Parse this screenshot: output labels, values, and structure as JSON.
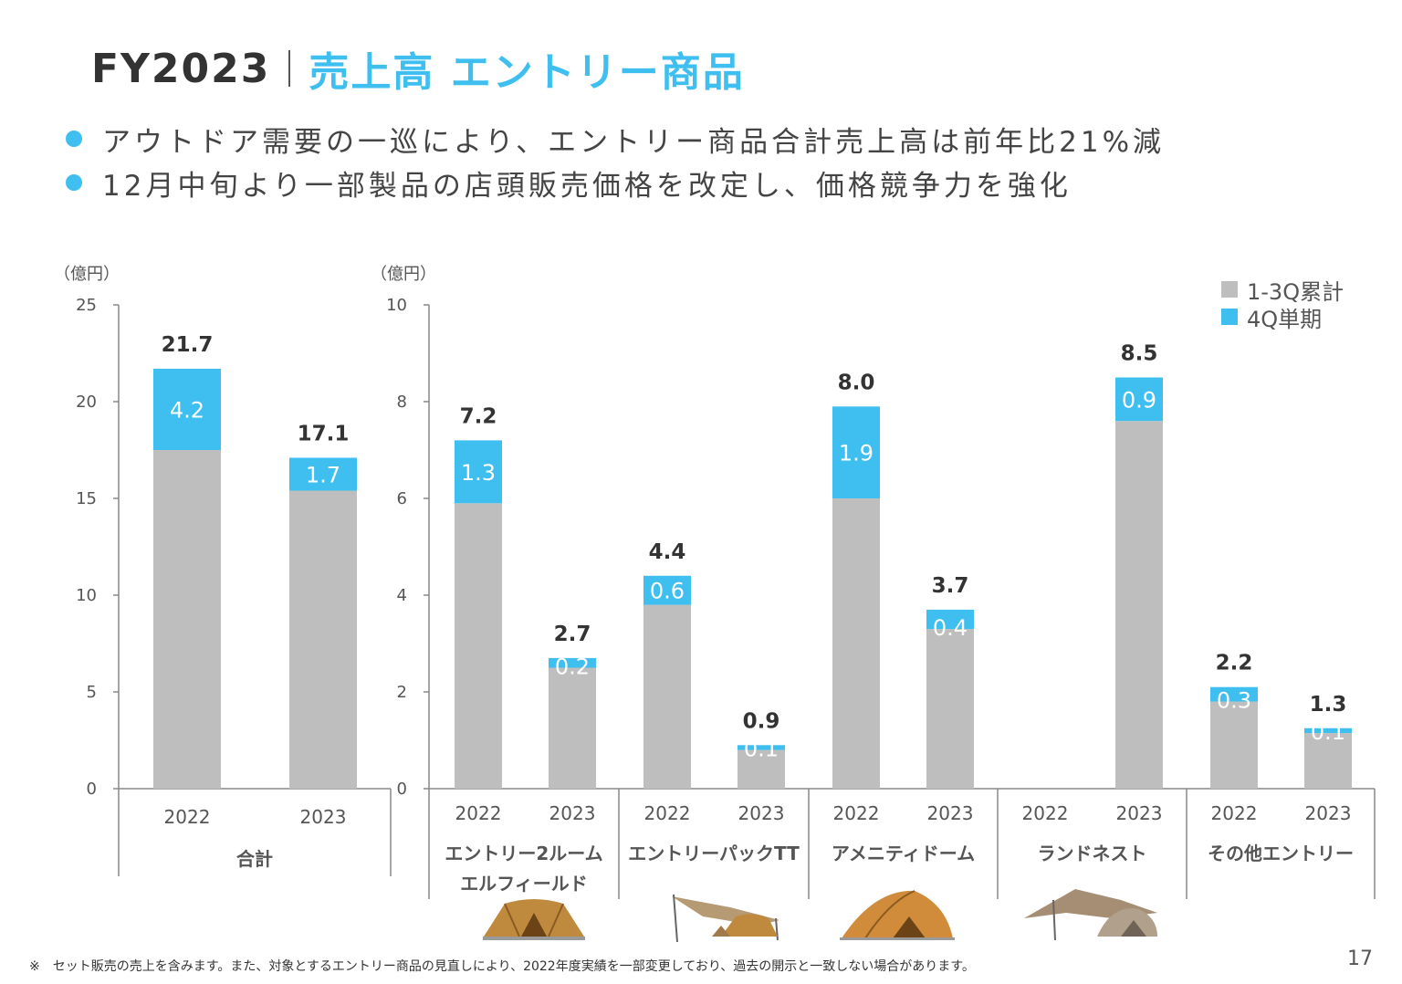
{
  "title": {
    "fy": "FY2023",
    "main": "売上高 エントリー商品"
  },
  "bullets": [
    "アウトドア需要の一巡により、エントリー商品合計売上高は前年比21%減",
    "12月中旬より一部製品の店頭販売価格を改定し、価格競争力を強化"
  ],
  "legend": [
    {
      "label": "1-3Q累計",
      "color": "#bebebe"
    },
    {
      "label": "4Q単期",
      "color": "#3fbfef"
    }
  ],
  "footnote": "※　セット販売の売上を含みます。また、対象とするエントリー商品の見直しにより、2022年度実績を一部変更しており、過去の開示と一致しない場合があります。",
  "page_number": "17",
  "colors": {
    "q13": "#bebebe",
    "q4": "#3fbfef",
    "accent": "#3fbfef"
  },
  "icons": [
    "tent-elfield-icon",
    "tent-entry-pack-tt-icon",
    "tent-amenity-dome-icon",
    "tent-land-nest-icon"
  ],
  "chart_data": [
    {
      "type": "bar",
      "stacked": true,
      "unit_label": "（億円）",
      "ylim": [
        0,
        25
      ],
      "yticks": [
        "0",
        "5",
        "10",
        "15",
        "20",
        "25"
      ],
      "groups": [
        {
          "label": "合計",
          "categories": [
            "2022",
            "2023"
          ]
        }
      ],
      "series": [
        {
          "name": "1-3Q累計",
          "values": [
            17.5,
            15.4
          ]
        },
        {
          "name": "4Q単期",
          "values": [
            4.2,
            1.7
          ]
        }
      ],
      "segment_labels": {
        "4Q単期": [
          "4.2",
          "1.7"
        ]
      },
      "totals": [
        "21.7",
        "17.1"
      ]
    },
    {
      "type": "bar",
      "stacked": true,
      "unit_label": "（億円）",
      "ylim": [
        0,
        10
      ],
      "yticks": [
        "0",
        "2",
        "4",
        "6",
        "8",
        "10"
      ],
      "groups": [
        {
          "label": "エントリー2ルーム\nエルフィールド",
          "categories": [
            "2022",
            "2023"
          ]
        },
        {
          "label": "エントリーパックTT",
          "categories": [
            "2022",
            "2023"
          ]
        },
        {
          "label": "アメニティドーム",
          "categories": [
            "2022",
            "2023"
          ]
        },
        {
          "label": "ランドネスト",
          "categories": [
            "2022",
            "2023"
          ]
        },
        {
          "label": "その他エントリー",
          "categories": [
            "2022",
            "2023"
          ]
        }
      ],
      "series": [
        {
          "name": "1-3Q累計",
          "values": [
            5.9,
            2.5,
            3.8,
            0.8,
            6.0,
            3.3,
            null,
            7.6,
            1.8,
            1.15
          ]
        },
        {
          "name": "4Q単期",
          "values": [
            1.3,
            0.2,
            0.6,
            0.1,
            1.9,
            0.4,
            null,
            0.9,
            0.3,
            0.1
          ]
        }
      ],
      "segment_labels": {
        "4Q単期": [
          "1.3",
          "0.2",
          "0.6",
          "0.1",
          "1.9",
          "0.4",
          "",
          "0.9",
          "0.3",
          "0.1"
        ]
      },
      "totals": [
        "7.2",
        "2.7",
        "4.4",
        "0.9",
        "8.0",
        "3.7",
        "",
        "8.5",
        "2.2",
        "1.3"
      ]
    }
  ]
}
